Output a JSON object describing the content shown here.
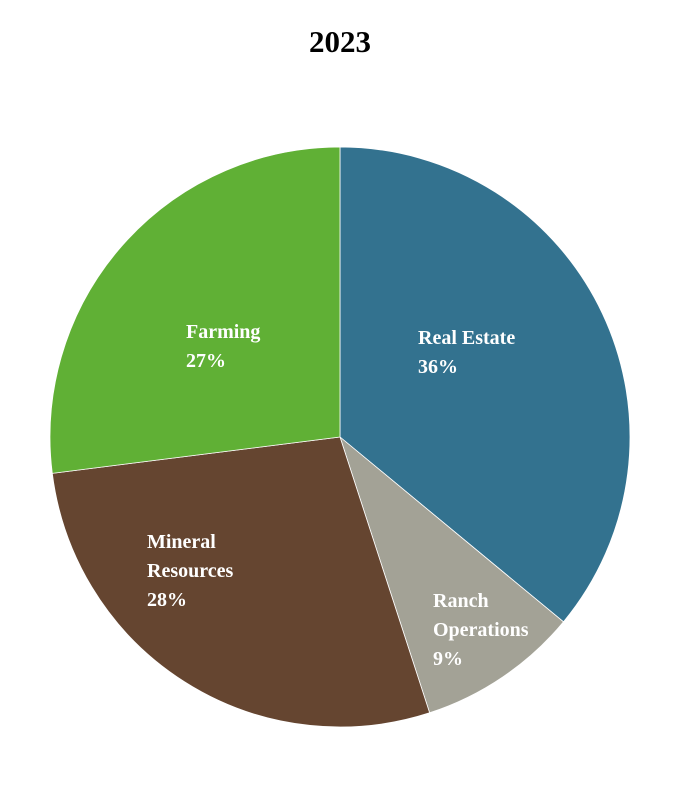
{
  "chart_data": {
    "type": "pie",
    "title": "2023",
    "start_angle": "12 o'clock",
    "direction": "clockwise",
    "slices": [
      {
        "label": "Real Estate",
        "value": 36,
        "display": "36%",
        "color": "#33728f"
      },
      {
        "label": "Ranch Operations",
        "value": 9,
        "display": "9%",
        "color": "#a3a296"
      },
      {
        "label": "Mineral Resources",
        "value": 28,
        "display": "28%",
        "color": "#654530"
      },
      {
        "label": "Farming",
        "value": 27,
        "display": "27%",
        "color": "#60b035"
      }
    ],
    "label_color": "#ffffff",
    "legend": "none"
  }
}
